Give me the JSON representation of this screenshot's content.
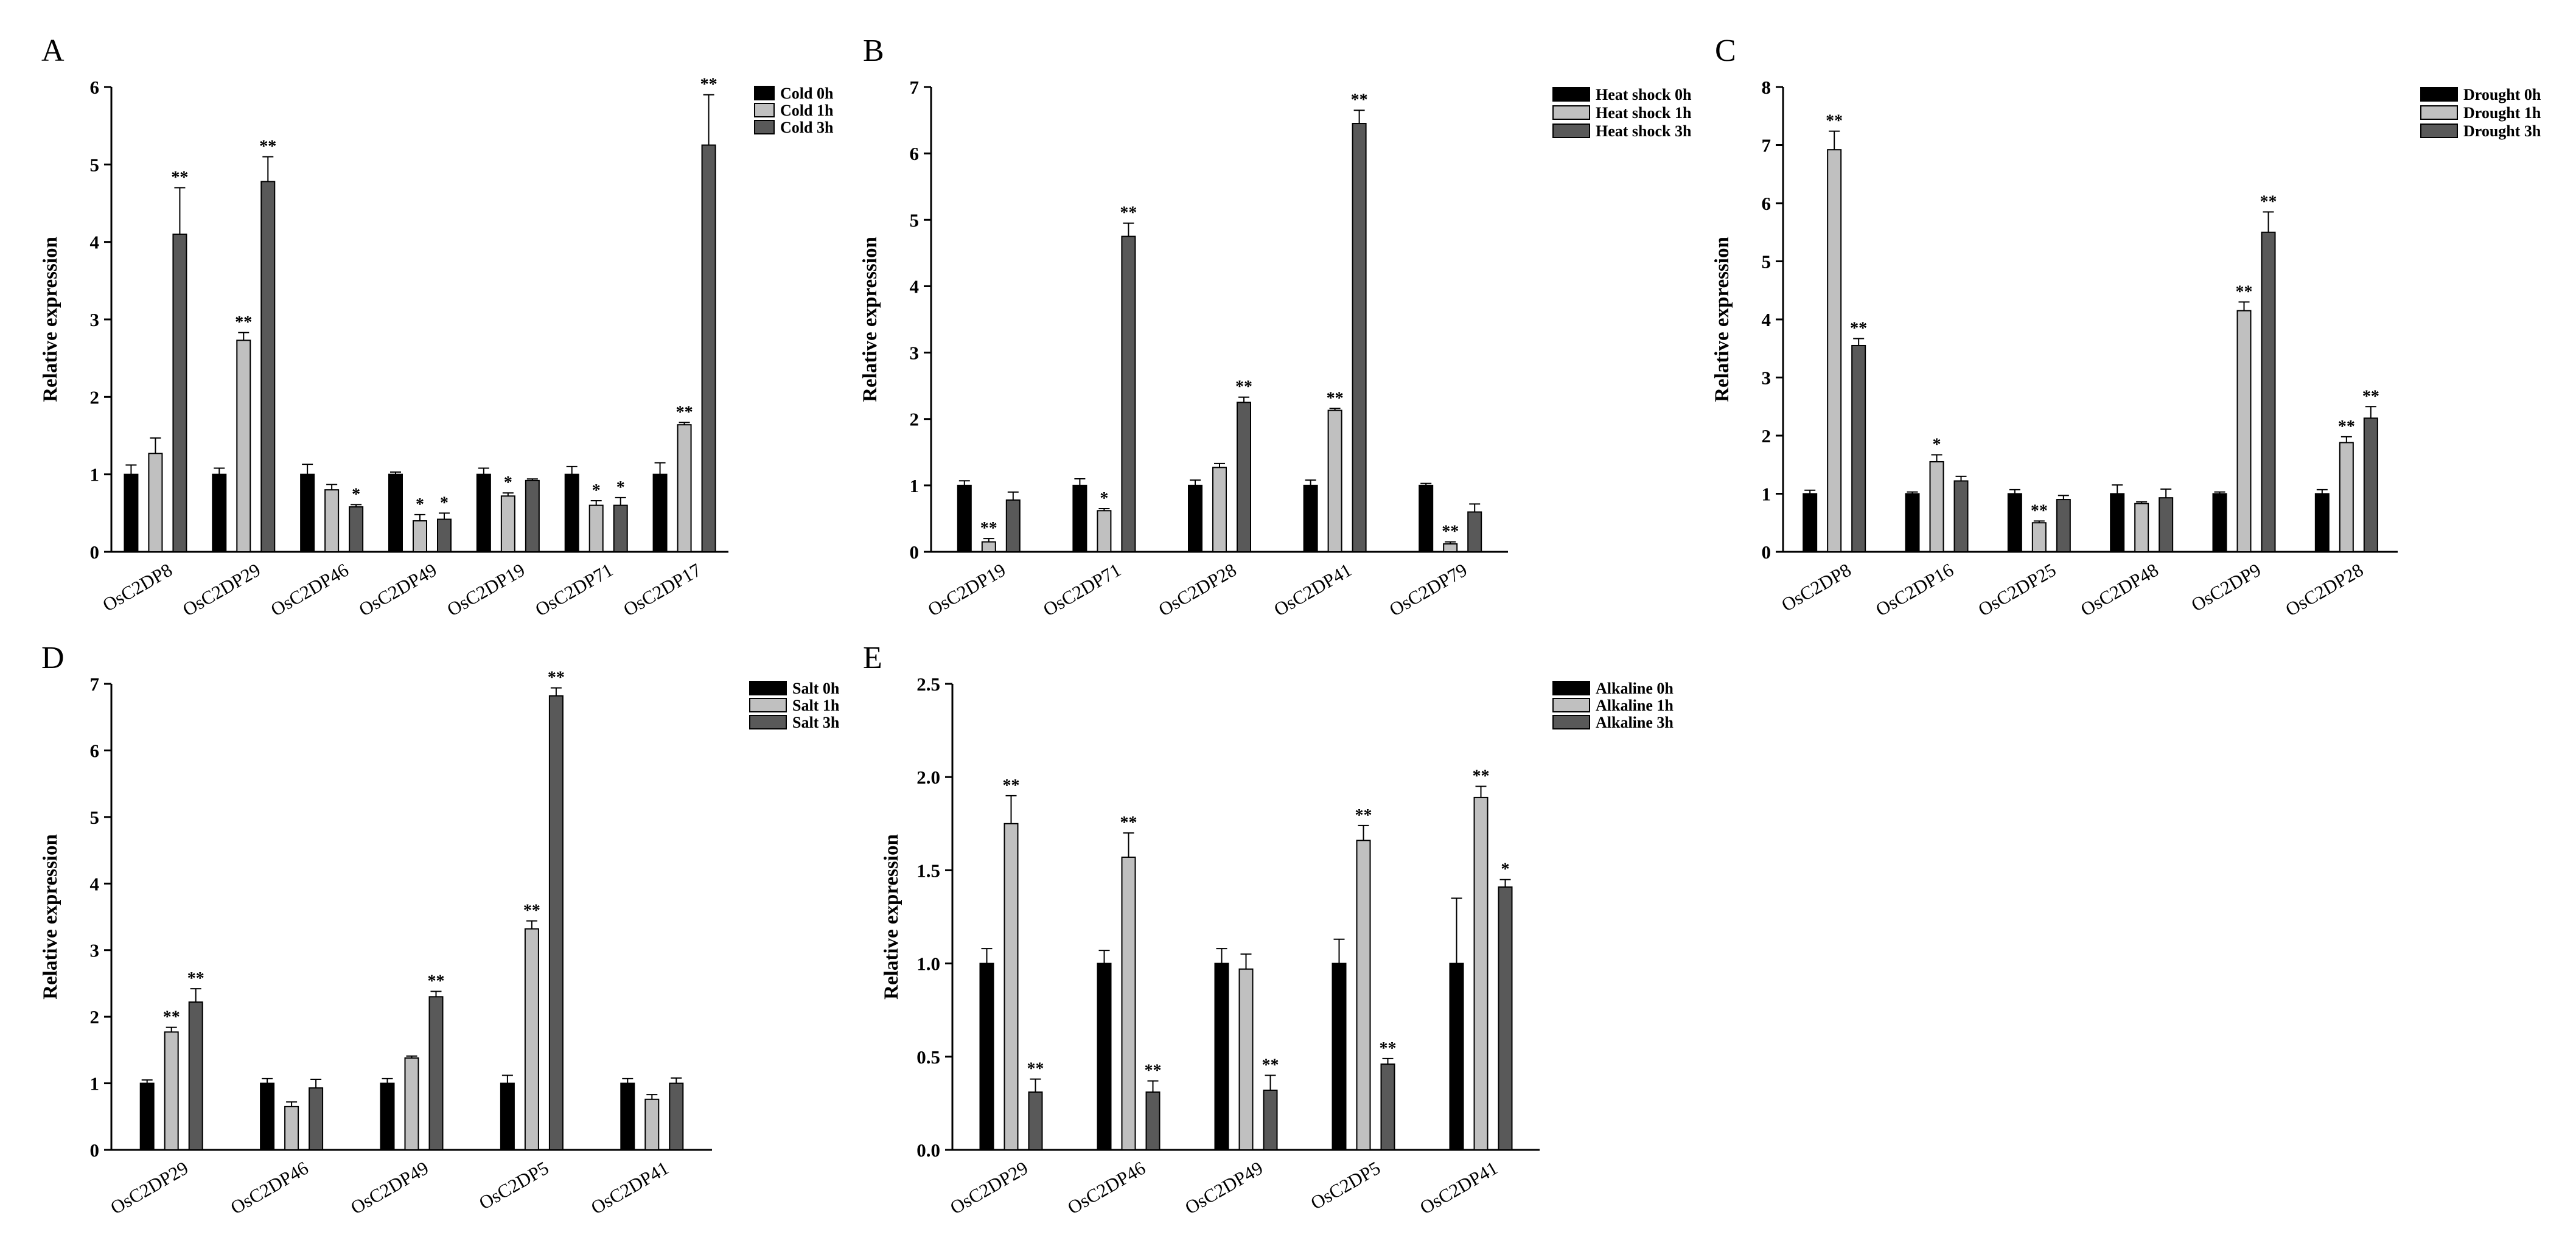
{
  "figure": {
    "panels": [
      "A",
      "B",
      "C",
      "D",
      "E"
    ]
  },
  "chart_data": [
    {
      "panel": "A",
      "type": "bar",
      "title": "",
      "xlabel": "",
      "ylabel": "Relative expression",
      "ylim": [
        0,
        6
      ],
      "yticks": [
        "0",
        "1",
        "2",
        "3",
        "4",
        "5",
        "6"
      ],
      "categories": [
        "OsC2DP8",
        "OsC2DP29",
        "OsC2DP46",
        "OsC2DP49",
        "OsC2DP19",
        "OsC2DP71",
        "OsC2DP17"
      ],
      "series": [
        {
          "name": "Cold 0h",
          "color": "#000000",
          "values": [
            1.0,
            1.0,
            1.0,
            1.0,
            1.0,
            1.0,
            1.0
          ],
          "errors": [
            0.12,
            0.08,
            0.13,
            0.03,
            0.08,
            0.1,
            0.15
          ],
          "sig": [
            "",
            "",
            "",
            "",
            "",
            "",
            ""
          ]
        },
        {
          "name": "Cold 1h",
          "color": "#c0c0c0",
          "values": [
            1.27,
            2.73,
            0.8,
            0.4,
            0.72,
            0.6,
            1.64
          ],
          "errors": [
            0.2,
            0.1,
            0.07,
            0.08,
            0.04,
            0.06,
            0.03
          ],
          "sig": [
            "",
            "**",
            "",
            "*",
            "*",
            "*",
            "**"
          ]
        },
        {
          "name": "Cold 3h",
          "color": "#595959",
          "values": [
            4.1,
            4.78,
            0.58,
            0.42,
            0.92,
            0.6,
            5.25
          ],
          "errors": [
            0.6,
            0.32,
            0.03,
            0.08,
            0.02,
            0.1,
            0.65
          ],
          "sig": [
            "**",
            "**",
            "*",
            "*",
            "",
            "*",
            "**"
          ]
        }
      ],
      "legend_position": "top-right"
    },
    {
      "panel": "B",
      "type": "bar",
      "title": "",
      "xlabel": "",
      "ylabel": "Relative expression",
      "ylim": [
        0,
        7
      ],
      "yticks": [
        "0",
        "1",
        "2",
        "3",
        "4",
        "5",
        "6",
        "7"
      ],
      "categories": [
        "OsC2DP19",
        "OsC2DP71",
        "OsC2DP28",
        "OsC2DP41",
        "OsC2DP79"
      ],
      "series": [
        {
          "name": "Heat shock 0h",
          "color": "#000000",
          "values": [
            1.0,
            1.0,
            1.0,
            1.0,
            1.0
          ],
          "errors": [
            0.07,
            0.1,
            0.08,
            0.08,
            0.03
          ],
          "sig": [
            "",
            "",
            "",
            "",
            ""
          ]
        },
        {
          "name": "Heat shock 1h",
          "color": "#c0c0c0",
          "values": [
            0.15,
            0.62,
            1.27,
            2.13,
            0.12
          ],
          "errors": [
            0.05,
            0.03,
            0.06,
            0.03,
            0.03
          ],
          "sig": [
            "**",
            "*",
            "",
            "**",
            "**"
          ]
        },
        {
          "name": "Heat shock 3h",
          "color": "#595959",
          "values": [
            0.78,
            4.75,
            2.25,
            6.45,
            0.6
          ],
          "errors": [
            0.12,
            0.2,
            0.08,
            0.2,
            0.12
          ],
          "sig": [
            "",
            "**",
            "**",
            "**",
            ""
          ]
        }
      ],
      "legend_position": "top-right"
    },
    {
      "panel": "C",
      "type": "bar",
      "title": "",
      "xlabel": "",
      "ylabel": "Relative expression",
      "ylim": [
        0,
        8
      ],
      "yticks": [
        "0",
        "1",
        "2",
        "3",
        "4",
        "5",
        "6",
        "7",
        "8"
      ],
      "categories": [
        "OsC2DP8",
        "OsC2DP16",
        "OsC2DP25",
        "OsC2DP48",
        "OsC2DP9",
        "OsC2DP28"
      ],
      "series": [
        {
          "name": "Drought 0h",
          "color": "#000000",
          "values": [
            1.0,
            1.0,
            1.0,
            1.0,
            1.0,
            1.0
          ],
          "errors": [
            0.06,
            0.03,
            0.07,
            0.15,
            0.03,
            0.07
          ],
          "sig": [
            "",
            "",
            "",
            "",
            "",
            ""
          ]
        },
        {
          "name": "Drought 1h",
          "color": "#c0c0c0",
          "values": [
            6.92,
            1.55,
            0.5,
            0.83,
            4.15,
            1.88
          ],
          "errors": [
            0.32,
            0.12,
            0.03,
            0.03,
            0.15,
            0.1
          ],
          "sig": [
            "**",
            "*",
            "**",
            "",
            "**",
            "**"
          ]
        },
        {
          "name": "Drought 3h",
          "color": "#595959",
          "values": [
            3.55,
            1.22,
            0.9,
            0.93,
            5.5,
            2.3
          ],
          "errors": [
            0.12,
            0.08,
            0.07,
            0.15,
            0.35,
            0.2
          ],
          "sig": [
            "**",
            "",
            "",
            "",
            "**",
            "**"
          ]
        }
      ],
      "legend_position": "top-right"
    },
    {
      "panel": "D",
      "type": "bar",
      "title": "",
      "xlabel": "",
      "ylabel": "Relative expression",
      "ylim": [
        0,
        7
      ],
      "yticks": [
        "0",
        "1",
        "2",
        "3",
        "4",
        "5",
        "6",
        "7"
      ],
      "categories": [
        "OsC2DP29",
        "OsC2DP46",
        "OsC2DP49",
        "OsC2DP5",
        "OsC2DP41"
      ],
      "series": [
        {
          "name": "Salt 0h",
          "color": "#000000",
          "values": [
            1.0,
            1.0,
            1.0,
            1.0,
            1.0
          ],
          "errors": [
            0.05,
            0.07,
            0.07,
            0.12,
            0.07
          ],
          "sig": [
            "",
            "",
            "",
            "",
            ""
          ]
        },
        {
          "name": "Salt 1h",
          "color": "#c0c0c0",
          "values": [
            1.77,
            0.65,
            1.38,
            3.32,
            0.76
          ],
          "errors": [
            0.07,
            0.07,
            0.03,
            0.12,
            0.07
          ],
          "sig": [
            "**",
            "",
            "",
            "**",
            ""
          ]
        },
        {
          "name": "Salt 3h",
          "color": "#595959",
          "values": [
            2.22,
            0.93,
            2.3,
            6.82,
            1.0
          ],
          "errors": [
            0.2,
            0.13,
            0.08,
            0.12,
            0.08
          ],
          "sig": [
            "**",
            "",
            "**",
            "**",
            ""
          ]
        }
      ],
      "legend_position": "top-right"
    },
    {
      "panel": "E",
      "type": "bar",
      "title": "",
      "xlabel": "",
      "ylabel": "Relative expression",
      "ylim": [
        0,
        2.5
      ],
      "yticks": [
        "0.0",
        "0.5",
        "1.0",
        "1.5",
        "2.0",
        "2.5"
      ],
      "categories": [
        "OsC2DP29",
        "OsC2DP46",
        "OsC2DP49",
        "OsC2DP5",
        "OsC2DP41"
      ],
      "series": [
        {
          "name": "Alkaline 0h",
          "color": "#000000",
          "values": [
            1.0,
            1.0,
            1.0,
            1.0,
            1.0
          ],
          "errors": [
            0.08,
            0.07,
            0.08,
            0.13,
            0.35
          ],
          "sig": [
            "",
            "",
            "",
            "",
            ""
          ]
        },
        {
          "name": "Alkaline 1h",
          "color": "#c0c0c0",
          "values": [
            1.75,
            1.57,
            0.97,
            1.66,
            1.89
          ],
          "errors": [
            0.15,
            0.13,
            0.08,
            0.08,
            0.06
          ],
          "sig": [
            "**",
            "**",
            "",
            "**",
            "**"
          ]
        },
        {
          "name": "Alkaline 3h",
          "color": "#595959",
          "values": [
            0.31,
            0.31,
            0.32,
            0.46,
            1.41
          ],
          "errors": [
            0.07,
            0.06,
            0.08,
            0.03,
            0.04
          ],
          "sig": [
            "**",
            "**",
            "**",
            "**",
            "*"
          ]
        }
      ],
      "legend_position": "top-right"
    }
  ]
}
